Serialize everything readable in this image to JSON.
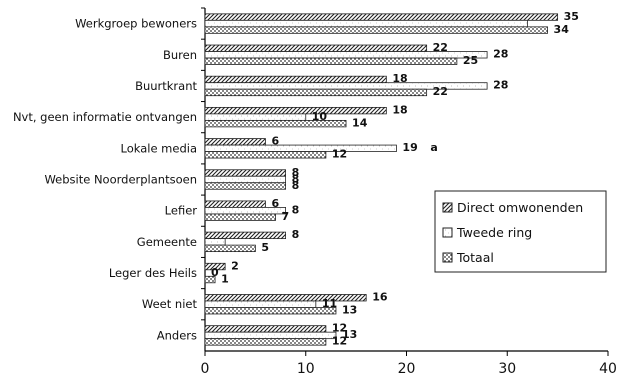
{
  "chart_data": {
    "type": "bar",
    "orientation": "horizontal",
    "categories": [
      "Werkgroep bewoners",
      "Buren",
      "Buurtkrant",
      "Nvt, geen informatie ontvangen",
      "Lokale media",
      "Website Noorderplantsoen",
      "Lefier",
      "Gemeente",
      "Leger des Heils",
      "Weet niet",
      "Anders"
    ],
    "series": [
      {
        "name": "Direct omwonenden",
        "values": [
          35,
          22,
          18,
          18,
          6,
          8,
          6,
          8,
          2,
          16,
          12
        ],
        "pattern": "hatch",
        "color": "#333333"
      },
      {
        "name": "Tweede ring",
        "values": [
          32,
          28,
          28,
          10,
          19,
          8,
          8,
          2,
          0,
          11,
          13
        ],
        "pattern": "light",
        "color": "#999999"
      },
      {
        "name": "Totaal",
        "values": [
          34,
          25,
          22,
          14,
          12,
          8,
          7,
          5,
          1,
          13,
          12
        ],
        "pattern": "dots",
        "color": "#444444"
      }
    ],
    "value_labels": [
      [
        "35",
        "",
        "34"
      ],
      [
        "22",
        "28",
        "25"
      ],
      [
        "18",
        "28",
        "22"
      ],
      [
        "18",
        "10",
        "14"
      ],
      [
        "6",
        "19",
        "12"
      ],
      [
        "8",
        "8",
        "8"
      ],
      [
        "6",
        "8",
        "7"
      ],
      [
        "8",
        "",
        "5"
      ],
      [
        "2",
        "0",
        "1"
      ],
      [
        "16",
        "11",
        "13"
      ],
      [
        "12",
        "13",
        "12"
      ]
    ],
    "annotations": [
      {
        "category": "Lokale media",
        "series": "Tweede ring",
        "text": "a"
      }
    ],
    "x_ticks": [
      0,
      10,
      20,
      30,
      40
    ],
    "xlim": [
      0,
      40
    ],
    "title": "",
    "xlabel": "",
    "ylabel": "",
    "legend_position": "right",
    "grid": false
  }
}
